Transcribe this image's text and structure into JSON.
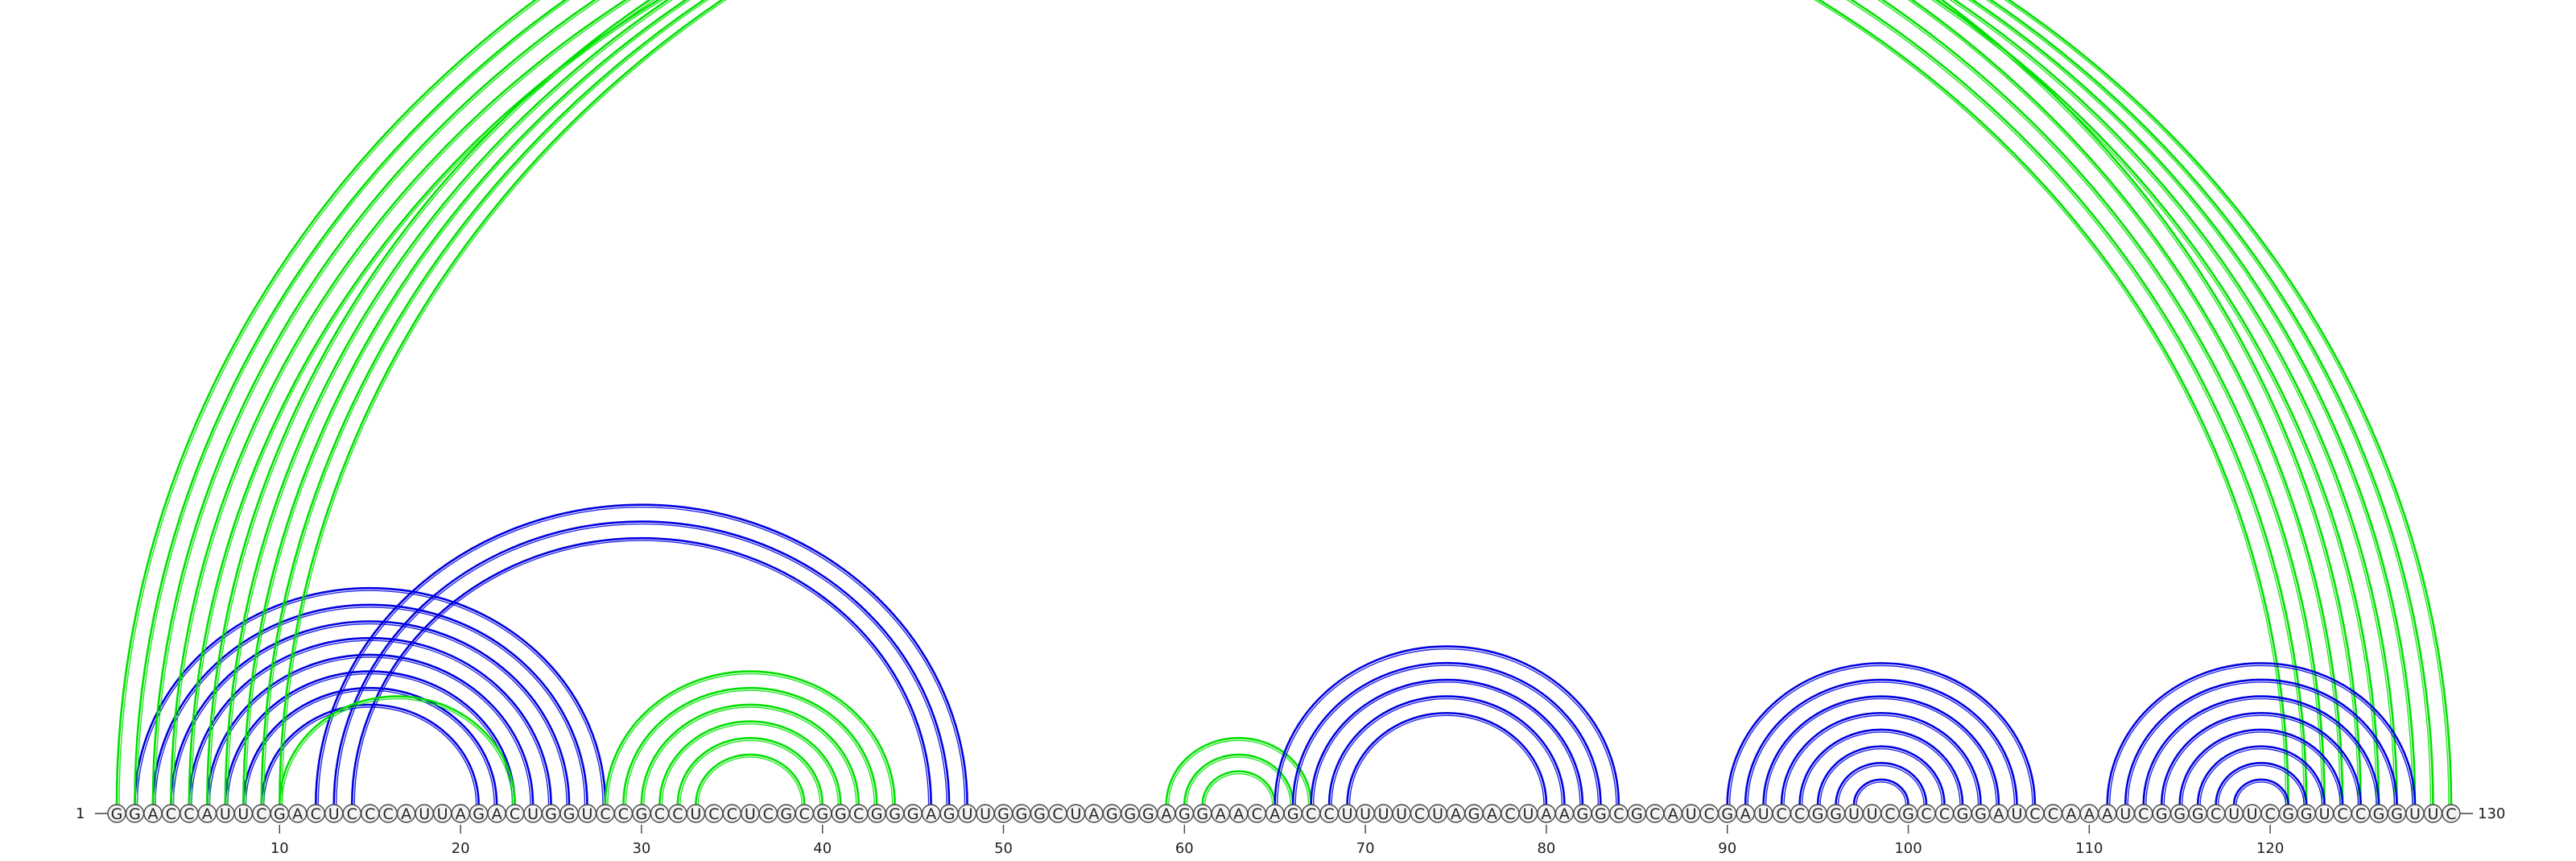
{
  "sequence": "GGACCAUUCGACUCCCAUUAGACUGGUCCGCCUCCUCGCGGCGGGAGUUGGGCUAGGGAGGAACAGCCUUUUCUAGACUAAGGCGCAUCGAUCCGGUUCGCCGGAUCCAAAUCGGGCUUCGGUCCGGUUC",
  "start_label": "1",
  "end_label": "130",
  "ticks": [
    10,
    20,
    30,
    40,
    50,
    60,
    70,
    80,
    90,
    100,
    110,
    120
  ],
  "colors": {
    "blue": "#0000e0",
    "green": "#00e000",
    "stroke": "#444444"
  },
  "arc_groups": [
    {
      "color": "blue",
      "pairs": [
        [
          2,
          28
        ],
        [
          3,
          27
        ],
        [
          4,
          26
        ],
        [
          5,
          25
        ],
        [
          6,
          24
        ],
        [
          7,
          23
        ],
        [
          8,
          22
        ],
        [
          9,
          21
        ]
      ]
    },
    {
      "color": "blue",
      "pairs": [
        [
          12,
          48
        ],
        [
          13,
          47
        ],
        [
          14,
          46
        ]
      ]
    },
    {
      "color": "green",
      "pairs": [
        [
          10,
          23
        ]
      ]
    },
    {
      "color": "green",
      "pairs": [
        [
          1,
          125
        ],
        [
          2,
          124
        ],
        [
          3,
          123
        ],
        [
          4,
          122
        ],
        [
          5,
          121
        ],
        [
          6,
          126
        ],
        [
          7,
          127
        ],
        [
          8,
          128
        ],
        [
          9,
          129
        ],
        [
          10,
          130
        ]
      ]
    },
    {
      "color": "green",
      "pairs": [
        [
          28,
          44
        ],
        [
          29,
          43
        ],
        [
          30,
          42
        ],
        [
          31,
          41
        ],
        [
          32,
          40
        ],
        [
          33,
          39
        ]
      ]
    },
    {
      "color": "green",
      "pairs": [
        [
          59,
          67
        ],
        [
          60,
          66
        ],
        [
          61,
          65
        ]
      ]
    },
    {
      "color": "blue",
      "pairs": [
        [
          65,
          84
        ],
        [
          66,
          83
        ],
        [
          67,
          82
        ],
        [
          68,
          81
        ],
        [
          69,
          80
        ]
      ]
    },
    {
      "color": "blue",
      "pairs": [
        [
          90,
          107
        ],
        [
          91,
          106
        ],
        [
          92,
          105
        ],
        [
          93,
          104
        ],
        [
          94,
          103
        ],
        [
          95,
          102
        ],
        [
          96,
          101
        ],
        [
          97,
          100
        ]
      ]
    },
    {
      "color": "blue",
      "pairs": [
        [
          111,
          128
        ],
        [
          112,
          127
        ],
        [
          113,
          126
        ],
        [
          114,
          125
        ],
        [
          115,
          124
        ],
        [
          116,
          123
        ],
        [
          117,
          122
        ],
        [
          118,
          121
        ]
      ]
    }
  ]
}
